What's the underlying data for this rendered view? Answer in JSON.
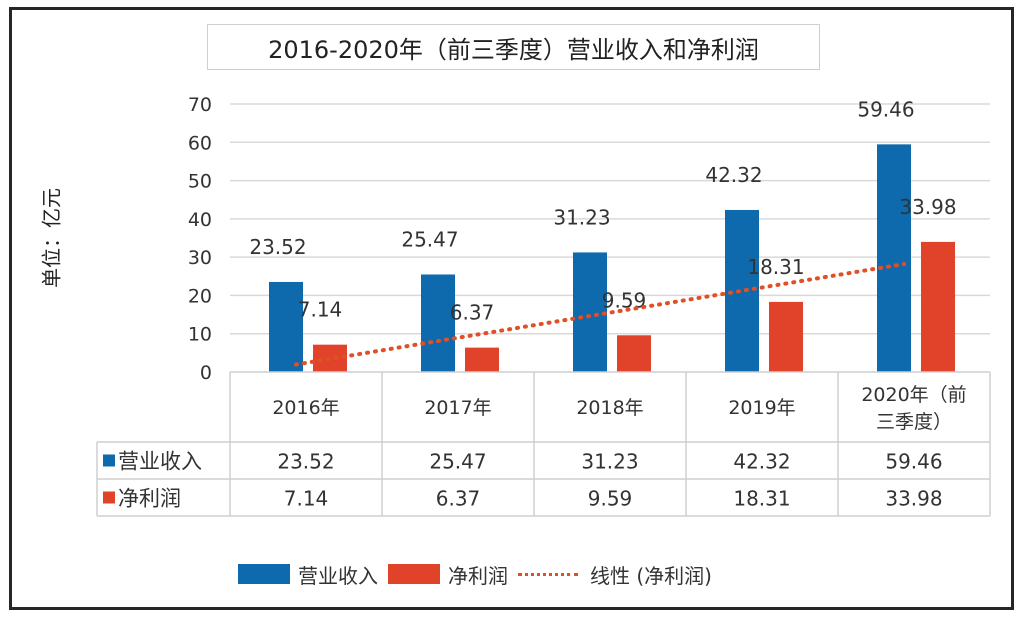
{
  "chart_data": {
    "type": "bar",
    "title": "2016-2020年（前三季度）营业收入和净利润",
    "xlabel": "",
    "ylabel": "单位：亿元",
    "ylim": [
      0,
      70
    ],
    "yticks": [
      "0",
      "10",
      "20",
      "30",
      "40",
      "50",
      "60",
      "70"
    ],
    "grid": true,
    "categories": [
      "2016年",
      "2017年",
      "2018年",
      "2019年",
      "2020年（前三季度）"
    ],
    "category_lines": [
      [
        "2016年"
      ],
      [
        "2017年"
      ],
      [
        "2018年"
      ],
      [
        "2019年"
      ],
      [
        "2020年（前",
        "三季度）"
      ]
    ],
    "series": [
      {
        "name": "营业收入",
        "color": "#0f6aad",
        "values": [
          23.52,
          25.47,
          31.23,
          42.32,
          59.46
        ],
        "labels": [
          "23.52",
          "25.47",
          "31.23",
          "42.32",
          "59.46"
        ]
      },
      {
        "name": "净利润",
        "color": "#e0432a",
        "values": [
          7.14,
          6.37,
          9.59,
          18.31,
          33.98
        ],
        "labels": [
          "7.14",
          "6.37",
          "9.59",
          "18.31",
          "33.98"
        ]
      }
    ],
    "trendline": {
      "name": "线性 (净利润)",
      "of_series": "净利润",
      "type": "linear",
      "color": "#e04f25",
      "style": "dotted"
    },
    "data_table": true,
    "legend_position": "bottom"
  }
}
